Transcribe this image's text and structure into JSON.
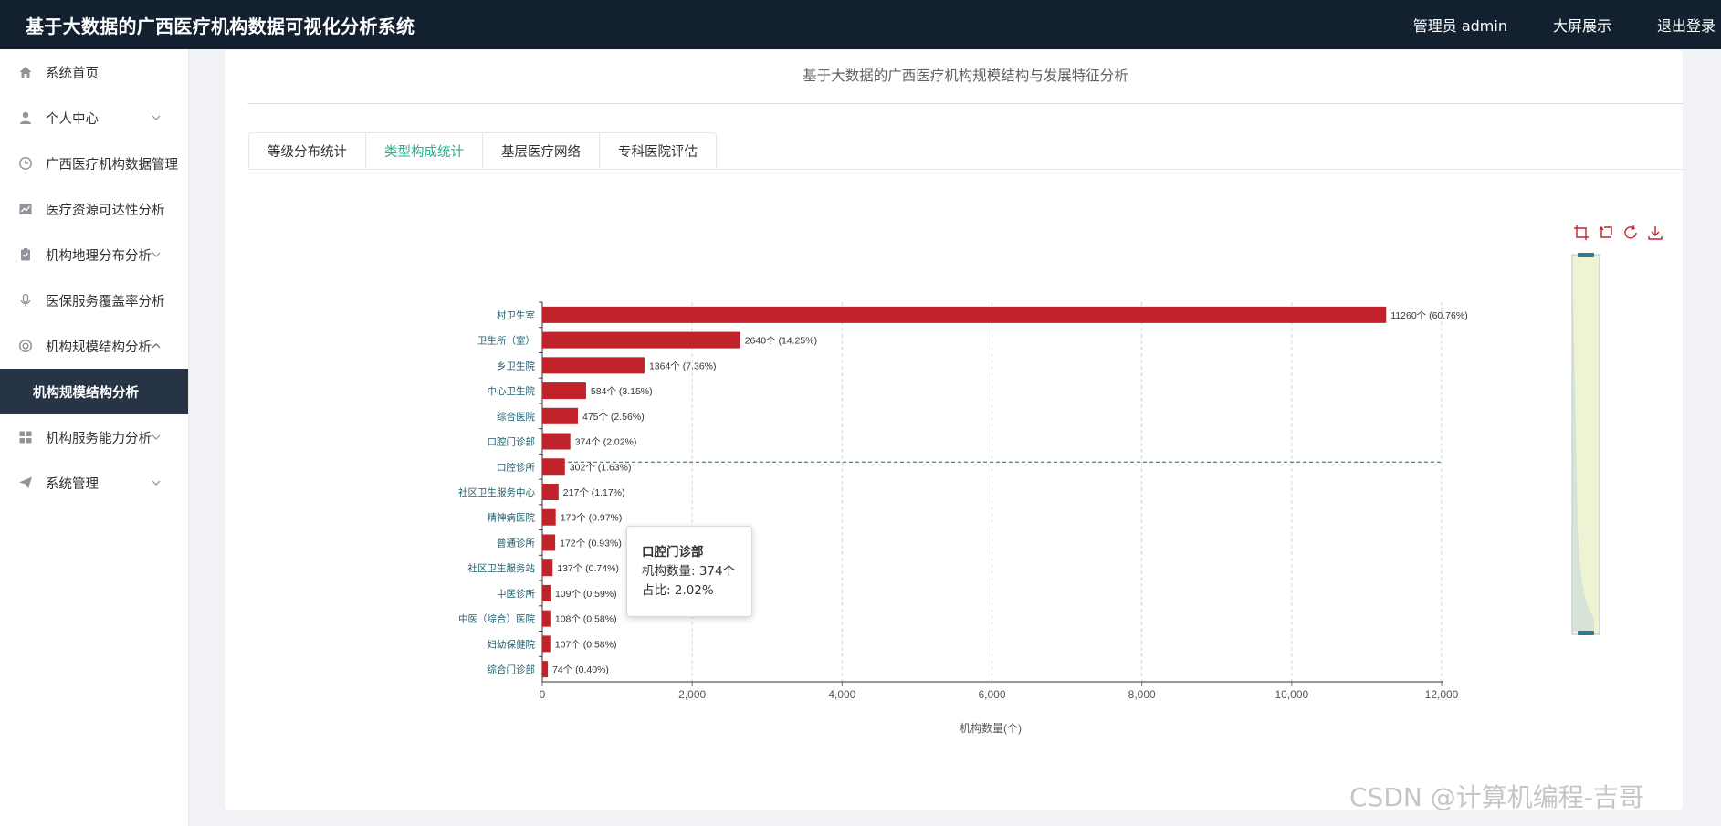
{
  "header": {
    "title": "基于大数据的广西医疗机构数据可视化分析系统",
    "user_label": "管理员 admin",
    "screen_label": "大屏展示",
    "logout_label": "退出登录"
  },
  "sidebar": {
    "items": [
      {
        "label": "系统首页",
        "icon": "home-icon"
      },
      {
        "label": "个人中心",
        "icon": "user-icon"
      },
      {
        "label": "广西医疗机构数据管理",
        "icon": "clock-icon"
      },
      {
        "label": "医疗资源可达性分析",
        "icon": "line-chart-icon"
      },
      {
        "label": "机构地理分布分析",
        "icon": "clipboard-icon"
      },
      {
        "label": "医保服务覆盖率分析",
        "icon": "microphone-icon"
      },
      {
        "label": "机构规模结构分析",
        "icon": "lifebuoy-icon"
      },
      {
        "label": "机构服务能力分析",
        "icon": "grid-icon"
      },
      {
        "label": "系统管理",
        "icon": "send-icon"
      }
    ],
    "active_sub": "机构规模结构分析"
  },
  "main": {
    "heading": "基于大数据的广西医疗机构规模结构与发展特征分析",
    "tabs": [
      "等级分布统计",
      "类型构成统计",
      "基层医疗网络",
      "专科医院评估"
    ],
    "active_tab": 1
  },
  "tooltip": {
    "name": "口腔门诊部",
    "count_line": "机构数量: 374个",
    "ratio_line": "占比: 2.02%"
  },
  "watermark": "CSDN @计算机编程-吉哥",
  "colors": {
    "bar": "#c1232b",
    "accent": "#1fb58f",
    "header_bg": "#12202f",
    "sidebar_active": "#263445"
  },
  "chart_data": {
    "type": "bar",
    "orientation": "horizontal",
    "categories": [
      "综合门诊部",
      "妇幼保健院",
      "中医（综合）医院",
      "中医诊所",
      "社区卫生服务站",
      "普通诊所",
      "精神病医院",
      "社区卫生服务中心",
      "口腔诊所",
      "口腔门诊部",
      "综合医院",
      "中心卫生院",
      "乡卫生院",
      "卫生所（室）",
      "村卫生室"
    ],
    "values": [
      74,
      107,
      108,
      109,
      137,
      172,
      179,
      217,
      302,
      374,
      475,
      584,
      1364,
      2640,
      11260
    ],
    "labels": [
      "74个 (0.40%)",
      "107个 (0.58%)",
      "108个 (0.58%)",
      "109个 (0.59%)",
      "137个 (0.74%)",
      "172个 (0.93%)",
      "179个 (0.97%)",
      "217个 (1.17%)",
      "302个 (1.63%)",
      "374个 (2.02%)",
      "475个 (2.56%)",
      "584个 (3.15%)",
      "1364个 (7.36%)",
      "2640个 (14.25%)",
      "11260个 (60.76%)"
    ],
    "xlabel": "机构数量(个)",
    "ylabel": "",
    "xlim": [
      0,
      12000
    ],
    "xticks": [
      "0",
      "2,000",
      "4,000",
      "6,000",
      "8,000",
      "10,000",
      "12,000"
    ],
    "grid": true,
    "highlight_index": 8
  }
}
